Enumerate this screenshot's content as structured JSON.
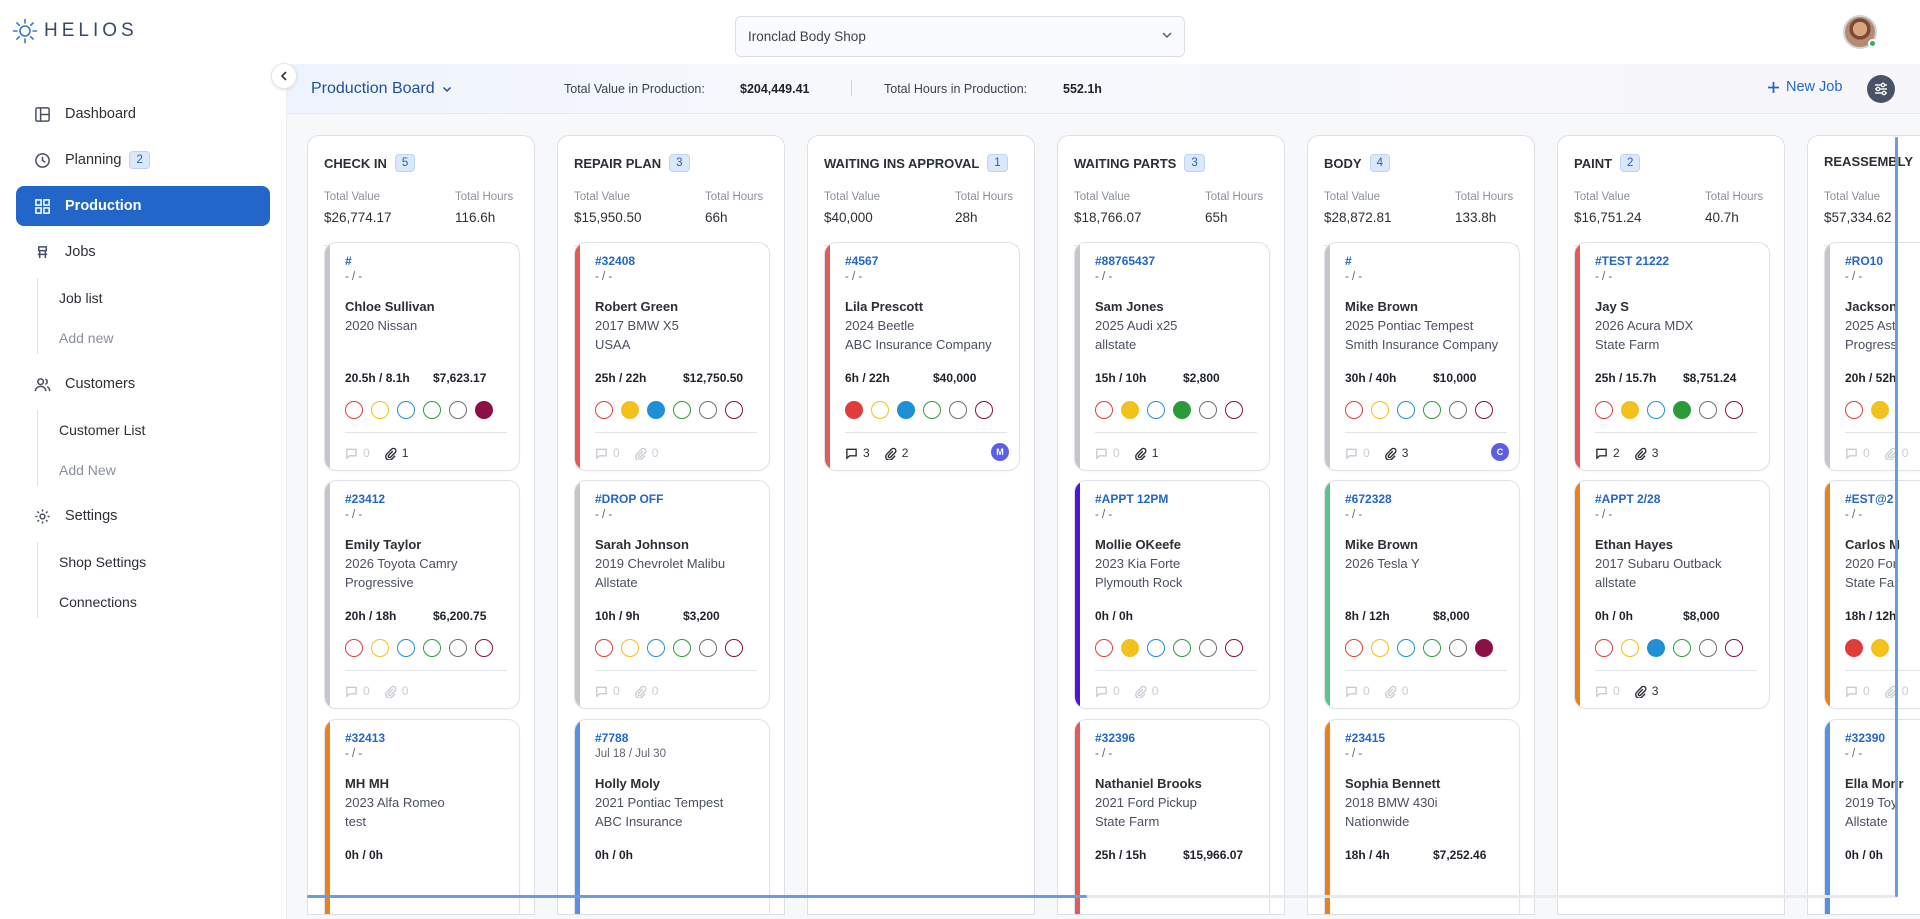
{
  "brand": {
    "name": "HELIOS",
    "logo_icon": "sun-icon",
    "color": "#3a4a66"
  },
  "shop_selector": {
    "value": "Ironclad Body Shop"
  },
  "sidebar": {
    "items": [
      {
        "label": "Dashboard",
        "icon": "dashboard-icon"
      },
      {
        "label": "Planning",
        "icon": "clock-icon",
        "badge": "2"
      },
      {
        "label": "Production",
        "icon": "grid-icon",
        "active": true
      },
      {
        "label": "Jobs",
        "icon": "jobs-icon"
      },
      {
        "label": "Customers",
        "icon": "users-icon"
      },
      {
        "label": "Settings",
        "icon": "gear-icon"
      }
    ],
    "jobs_sub": [
      "Job list",
      "Add new"
    ],
    "customers_sub": [
      "Customer List",
      "Add New"
    ],
    "settings_sub": [
      "Shop Settings",
      "Connections"
    ]
  },
  "header": {
    "title": "Production Board",
    "total_value_label": "Total Value in Production:",
    "total_value": "$204,449.41",
    "total_hours_label": "Total Hours in Production:",
    "total_hours": "552.1h",
    "new_job": "New Job"
  },
  "accent_color": "#2266c9",
  "columns": [
    {
      "title": "CHECK IN",
      "count": "5",
      "value_label": "Total Value",
      "value": "$26,774.17",
      "hours_label": "Total Hours",
      "hours": "116.6h",
      "cards": [
        {
          "ro": "#",
          "dates": "- / -",
          "name": "Chloe Sullivan",
          "car": "2020 Nissan",
          "ins": "",
          "hrs": "20.5h / 8.1h",
          "val": "$7,623.17",
          "bar": "#c4c6ca",
          "dots": [
            0,
            0,
            0,
            0,
            0,
            1
          ],
          "comments": "0",
          "attach": "1",
          "cdim": true,
          "adim": false
        },
        {
          "ro": "#23412",
          "dates": "- / -",
          "name": "Emily Taylor",
          "car": "2026 Toyota Camry",
          "ins": "Progressive",
          "hrs": "20h / 18h",
          "val": "$6,200.75",
          "bar": "#c4c6ca",
          "dots": [
            0,
            0,
            0,
            0,
            0,
            0
          ],
          "comments": "0",
          "attach": "0",
          "cdim": true,
          "adim": true
        },
        {
          "ro": "#32413",
          "dates": "- / -",
          "name": "MH MH",
          "car": "2023 Alfa Romeo",
          "ins": "test",
          "hrs": "0h / 0h",
          "val": "",
          "bar": "#e8821e",
          "dots": [],
          "comments": "",
          "attach": "",
          "cdim": true,
          "adim": true
        }
      ]
    },
    {
      "title": "REPAIR PLAN",
      "count": "3",
      "value_label": "Total Value",
      "value": "$15,950.50",
      "hours_label": "Total Hours",
      "hours": "66h",
      "cards": [
        {
          "ro": "#32408",
          "dates": "- / -",
          "name": "Robert Green",
          "car": "2017 BMW X5",
          "ins": "USAA",
          "hrs": "25h / 22h",
          "val": "$12,750.50",
          "bar": "#e25a5a",
          "dots": [
            0,
            1,
            1,
            0,
            0,
            0
          ],
          "comments": "0",
          "attach": "0",
          "cdim": true,
          "adim": true
        },
        {
          "ro": "#DROP OFF",
          "dates": "- / -",
          "name": "Sarah Johnson",
          "car": "2019 Chevrolet Malibu",
          "ins": "Allstate",
          "hrs": "10h / 9h",
          "val": "$3,200",
          "bar": "#c4c6ca",
          "dots": [
            0,
            0,
            0,
            0,
            0,
            0
          ],
          "comments": "0",
          "attach": "0",
          "cdim": true,
          "adim": true
        },
        {
          "ro": "#7788",
          "dates": "Jul 18 / Jul 30",
          "name": "Holly Moly",
          "car": "2021 Pontiac Tempest",
          "ins": "ABC Insurance",
          "hrs": "0h / 0h",
          "val": "",
          "bar": "#5b8ee6",
          "dots": [],
          "comments": "",
          "attach": "",
          "cdim": true,
          "adim": true
        }
      ]
    },
    {
      "title": "WAITING INS APPROVAL",
      "count": "1",
      "value_label": "Total Value",
      "value": "$40,000",
      "hours_label": "Total Hours",
      "hours": "28h",
      "cards": [
        {
          "ro": "#4567",
          "dates": "- / -",
          "name": "Lila Prescott",
          "car": "2024 Beetle",
          "ins": "ABC Insurance Company",
          "hrs": "6h / 22h",
          "val": "$40,000",
          "bar": "#e25a5a",
          "dots": [
            1,
            0,
            1,
            0,
            0,
            0
          ],
          "comments": "3",
          "attach": "2",
          "cdim": false,
          "adim": false,
          "user": "M"
        }
      ]
    },
    {
      "title": "WAITING PARTS",
      "count": "3",
      "value_label": "Total Value",
      "value": "$18,766.07",
      "hours_label": "Total Hours",
      "hours": "65h",
      "cards": [
        {
          "ro": "#88765437",
          "dates": "- / -",
          "name": "Sam Jones",
          "car": "2025 Audi x25",
          "ins": "allstate",
          "hrs": "15h / 10h",
          "val": "$2,800",
          "bar": "#c4c6ca",
          "dots": [
            0,
            1,
            0,
            1,
            0,
            0
          ],
          "comments": "0",
          "attach": "1",
          "cdim": true,
          "adim": false
        },
        {
          "ro": "#APPT 12PM",
          "dates": "- / -",
          "name": "Mollie OKeefe",
          "car": "2023 Kia Forte",
          "ins": "Plymouth Rock",
          "hrs": "0h / 0h",
          "val": "",
          "bar": "#4b16d8",
          "dots": [
            0,
            1,
            0,
            0,
            0,
            0
          ],
          "comments": "0",
          "attach": "0",
          "cdim": true,
          "adim": true
        },
        {
          "ro": "#32396",
          "dates": "- / -",
          "name": "Nathaniel Brooks",
          "car": "2021 Ford Pickup",
          "ins": "State Farm",
          "hrs": "25h / 15h",
          "val": "$15,966.07",
          "bar": "#e25a5a",
          "dots": [],
          "comments": "",
          "attach": "",
          "cdim": true,
          "adim": true
        }
      ]
    },
    {
      "title": "BODY",
      "count": "4",
      "value_label": "Total Value",
      "value": "$28,872.81",
      "hours_label": "Total Hours",
      "hours": "133.8h",
      "cards": [
        {
          "ro": "#",
          "dates": "- / -",
          "name": "Mike Brown",
          "car": "2025 Pontiac Tempest",
          "ins": "Smith Insurance Company",
          "hrs": "30h / 40h",
          "val": "$10,000",
          "bar": "#c4c6ca",
          "dots": [
            0,
            0,
            0,
            0,
            0,
            0
          ],
          "comments": "0",
          "attach": "3",
          "cdim": true,
          "adim": false,
          "user": "C"
        },
        {
          "ro": "#672328",
          "dates": "- / -",
          "name": "Mike Brown",
          "car": "2026 Tesla Y",
          "ins": "",
          "hrs": "8h / 12h",
          "val": "$8,000",
          "bar": "#5cc48a",
          "dots": [
            0,
            0,
            0,
            0,
            0,
            1
          ],
          "comments": "0",
          "attach": "0",
          "cdim": true,
          "adim": true
        },
        {
          "ro": "#23415",
          "dates": "- / -",
          "name": "Sophia Bennett",
          "car": "2018 BMW 430i",
          "ins": "Nationwide",
          "hrs": "18h / 4h",
          "val": "$7,252.46",
          "bar": "#e8821e",
          "dots": [],
          "comments": "",
          "attach": "",
          "cdim": true,
          "adim": true
        }
      ]
    },
    {
      "title": "PAINT",
      "count": "2",
      "value_label": "Total Value",
      "value": "$16,751.24",
      "hours_label": "Total Hours",
      "hours": "40.7h",
      "cards": [
        {
          "ro": "#TEST 21222",
          "dates": "- / -",
          "name": "Jay S",
          "car": "2026 Acura MDX",
          "ins": "State Farm",
          "hrs": "25h / 15.7h",
          "val": "$8,751.24",
          "bar": "#e25a5a",
          "dots": [
            0,
            1,
            0,
            1,
            0,
            0
          ],
          "comments": "2",
          "attach": "3",
          "cdim": false,
          "adim": false
        },
        {
          "ro": "#APPT 2/28",
          "dates": "- / -",
          "name": "Ethan Hayes",
          "car": "2017 Subaru Outback",
          "ins": "allstate",
          "hrs": "0h / 0h",
          "val": "$8,000",
          "bar": "#e8821e",
          "dots": [
            0,
            0,
            1,
            0,
            0,
            0
          ],
          "comments": "0",
          "attach": "3",
          "cdim": true,
          "adim": false
        }
      ]
    },
    {
      "title": "REASSEMBLY",
      "count": "",
      "value_label": "Total Value",
      "value": "$57,334.62",
      "hours_label": "Total Hours",
      "hours": "",
      "cards": [
        {
          "ro": "#RO10",
          "dates": "- / -",
          "name": "Jackson",
          "car": "2025 Ast",
          "ins": "Progress",
          "hrs": "20h / 52h",
          "val": "",
          "bar": "#c4c6ca",
          "dots": [
            0,
            1
          ],
          "comments": "0",
          "attach": "0",
          "cdim": true,
          "adim": true
        },
        {
          "ro": "#EST@2",
          "dates": "- / -",
          "name": "Carlos M",
          "car": "2020 For",
          "ins": "State Far",
          "hrs": "18h / 12h",
          "val": "",
          "bar": "#e8821e",
          "dots": [
            1,
            1
          ],
          "comments": "0",
          "attach": "0",
          "cdim": true,
          "adim": true
        },
        {
          "ro": "#32390",
          "dates": "- / -",
          "name": "Ella Monr",
          "car": "2019 Toy",
          "ins": "Allstate",
          "hrs": "0h / 0h",
          "val": "",
          "bar": "#5b8ee6",
          "dots": [],
          "comments": "",
          "attach": "",
          "cdim": true,
          "adim": true
        }
      ]
    }
  ],
  "status_colors": [
    "#e03c3c",
    "#f2c11c",
    "#1f8fd6",
    "#2d9a3a",
    "#6d6f75",
    "#8b1046"
  ]
}
